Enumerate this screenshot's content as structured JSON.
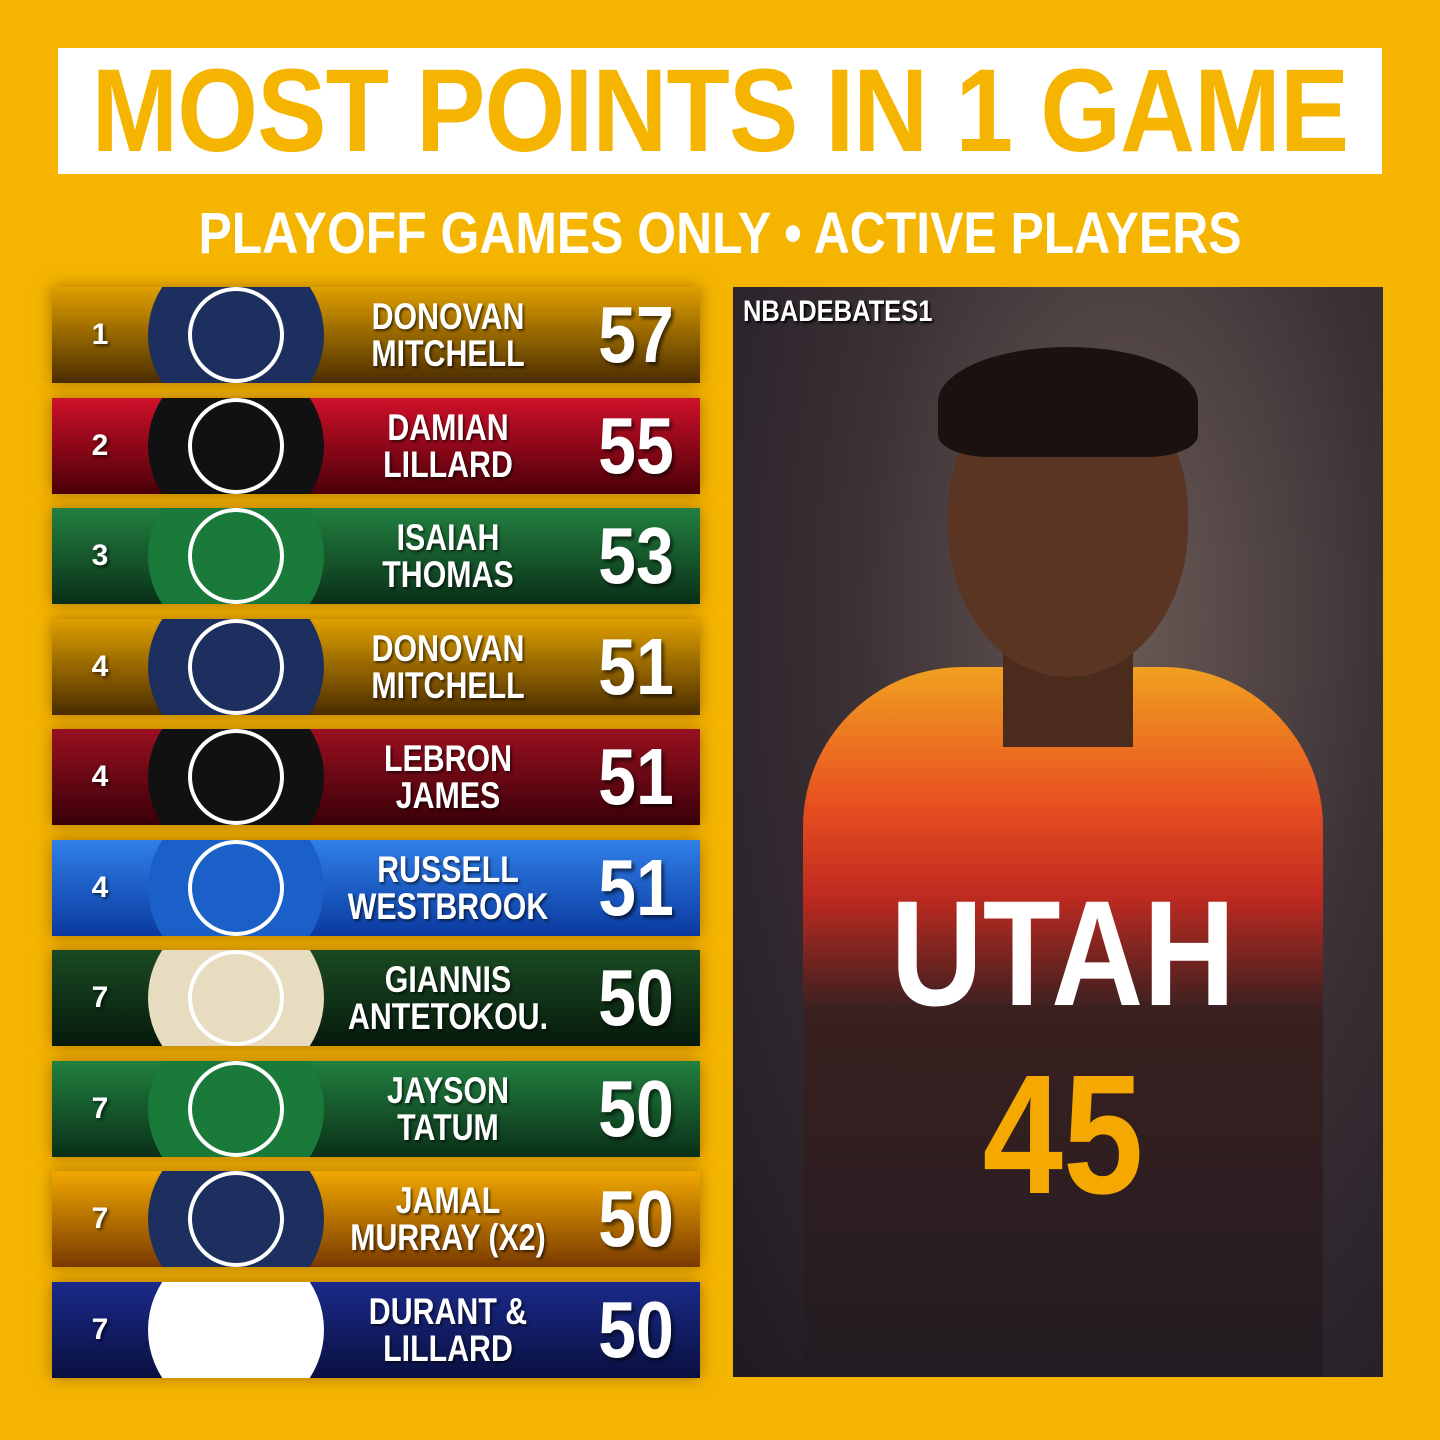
{
  "title": "MOST POINTS IN 1 GAME",
  "subtitle": "PLAYOFF GAMES ONLY • ACTIVE PLAYERS",
  "watermark": "NBADEBATES1",
  "photo": {
    "jersey_text": "UTAH",
    "jersey_number": "45"
  },
  "rows": [
    {
      "rank": "1",
      "line1": "DONOVAN",
      "line2": "MITCHELL",
      "points": "57",
      "team": "jazz",
      "bg": [
        "#e0a000",
        "#4a2c00"
      ],
      "logo": "#1d2f5e"
    },
    {
      "rank": "2",
      "line1": "DAMIAN",
      "line2": "LILLARD",
      "points": "55",
      "team": "trail-blazers",
      "bg": [
        "#d0102a",
        "#4a0008"
      ],
      "logo": "#111111"
    },
    {
      "rank": "3",
      "line1": "ISAIAH",
      "line2": "THOMAS",
      "points": "53",
      "team": "celtics",
      "bg": [
        "#228040",
        "#0a3018"
      ],
      "logo": "#1a7a3a"
    },
    {
      "rank": "4",
      "line1": "DONOVAN",
      "line2": "MITCHELL",
      "points": "51",
      "team": "jazz",
      "bg": [
        "#e0a000",
        "#4a2c00"
      ],
      "logo": "#1d2f5e"
    },
    {
      "rank": "4",
      "line1": "LEBRON",
      "line2": "JAMES",
      "points": "51",
      "team": "cavaliers",
      "bg": [
        "#9a1020",
        "#3a0008"
      ],
      "logo": "#111111"
    },
    {
      "rank": "4",
      "line1": "RUSSELL",
      "line2": "WESTBROOK",
      "points": "51",
      "team": "thunder",
      "bg": [
        "#3080e8",
        "#0a3aa0"
      ],
      "logo": "#1a60c8"
    },
    {
      "rank": "7",
      "line1": "GIANNIS",
      "line2": "ANTETOKOU.",
      "points": "50",
      "team": "bucks",
      "bg": [
        "#1a4a22",
        "#061a0c"
      ],
      "logo": "#e8dcc0"
    },
    {
      "rank": "7",
      "line1": "JAYSON",
      "line2": "TATUM",
      "points": "50",
      "team": "celtics",
      "bg": [
        "#228040",
        "#0a3018"
      ],
      "logo": "#1a7a3a"
    },
    {
      "rank": "7",
      "line1": "JAMAL",
      "line2": "MURRAY (X2)",
      "points": "50",
      "team": "nuggets",
      "bg": [
        "#f0a800",
        "#7a3a00"
      ],
      "logo": "#1d2f5e"
    },
    {
      "rank": "7",
      "line1": "DURANT &",
      "line2": "LILLARD",
      "points": "50",
      "team": "nba",
      "bg": [
        "#1a2a8a",
        "#0a1040"
      ],
      "logo": "#ffffff"
    }
  ]
}
